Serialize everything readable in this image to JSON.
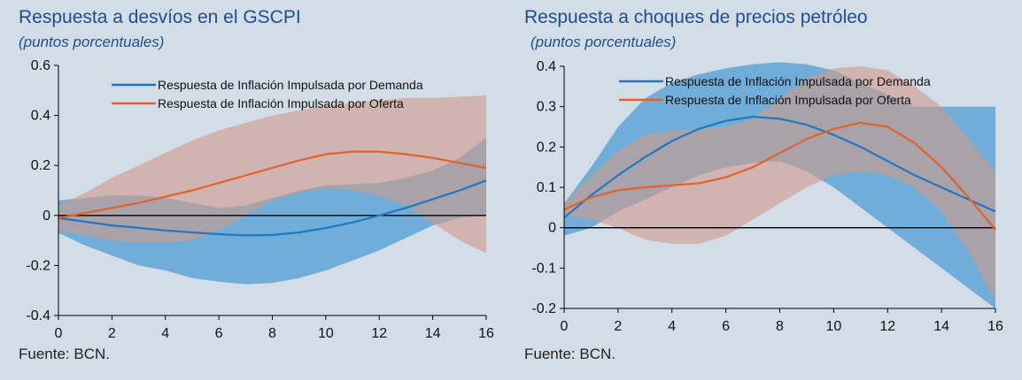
{
  "chart_data": [
    {
      "type": "line",
      "title": "Respuesta a desvíos en el GSCPI",
      "subtitle": "(puntos porcentuales)",
      "source": "Fuente: BCN.",
      "x": [
        0,
        1,
        2,
        3,
        4,
        5,
        6,
        7,
        8,
        9,
        10,
        11,
        12,
        13,
        14,
        15,
        16
      ],
      "xlim": [
        0,
        16
      ],
      "ylim": [
        -0.4,
        0.6
      ],
      "xticks": [
        "0",
        "2",
        "4",
        "6",
        "8",
        "10",
        "12",
        "14",
        "16"
      ],
      "yticks": [
        "-0.4",
        "-0.2",
        "0",
        "0.2",
        "0.4",
        "0.6"
      ],
      "legend_position": "top-center",
      "series": [
        {
          "name": "Respuesta de Inflación Impulsada por Demanda",
          "color": "#1f78c1",
          "band_color": "#5ea6d6",
          "values": [
            -0.01,
            -0.025,
            -0.04,
            -0.05,
            -0.06,
            -0.068,
            -0.075,
            -0.08,
            -0.078,
            -0.068,
            -0.05,
            -0.028,
            0.0,
            0.03,
            0.065,
            0.1,
            0.14
          ],
          "lower": [
            -0.07,
            -0.12,
            -0.16,
            -0.2,
            -0.22,
            -0.25,
            -0.265,
            -0.275,
            -0.27,
            -0.25,
            -0.22,
            -0.18,
            -0.14,
            -0.09,
            -0.04,
            -0.01,
            0.0
          ],
          "upper": [
            0.06,
            0.07,
            0.08,
            0.08,
            0.07,
            0.05,
            0.03,
            0.04,
            0.07,
            0.1,
            0.12,
            0.125,
            0.13,
            0.15,
            0.18,
            0.23,
            0.31
          ]
        },
        {
          "name": "Respuesta de Inflación Impulsada por Oferta",
          "color": "#e0622d",
          "band_color": "#d09a88",
          "values": [
            -0.01,
            0.01,
            0.03,
            0.05,
            0.075,
            0.1,
            0.13,
            0.16,
            0.19,
            0.22,
            0.245,
            0.255,
            0.255,
            0.245,
            0.23,
            0.21,
            0.19
          ],
          "lower": [
            -0.06,
            -0.08,
            -0.1,
            -0.11,
            -0.11,
            -0.1,
            -0.06,
            0.0,
            0.06,
            0.09,
            0.11,
            0.1,
            0.08,
            0.04,
            -0.03,
            -0.1,
            -0.15
          ],
          "upper": [
            0.04,
            0.09,
            0.15,
            0.2,
            0.25,
            0.3,
            0.34,
            0.37,
            0.4,
            0.42,
            0.44,
            0.45,
            0.46,
            0.47,
            0.47,
            0.475,
            0.48
          ]
        }
      ]
    },
    {
      "type": "line",
      "title": "Respuesta a choques de precios petróleo",
      "subtitle": "(puntos porcentuales)",
      "source": "Fuente: BCN.",
      "x": [
        0,
        1,
        2,
        3,
        4,
        5,
        6,
        7,
        8,
        9,
        10,
        11,
        12,
        13,
        14,
        15,
        16
      ],
      "xlim": [
        0,
        16
      ],
      "ylim": [
        -0.2,
        0.4
      ],
      "xticks": [
        "0",
        "2",
        "4",
        "6",
        "8",
        "10",
        "12",
        "14",
        "16"
      ],
      "yticks": [
        "-0.2",
        "-0.1",
        "0",
        "0.1",
        "0.2",
        "0.3",
        "0.4"
      ],
      "legend_position": "top-center",
      "series": [
        {
          "name": "Respuesta de Inflación Impulsada por Demanda",
          "color": "#1f78c1",
          "band_color": "#5ea6d6",
          "values": [
            0.025,
            0.08,
            0.13,
            0.175,
            0.215,
            0.245,
            0.265,
            0.275,
            0.27,
            0.255,
            0.23,
            0.2,
            0.165,
            0.13,
            0.1,
            0.07,
            0.04
          ],
          "lower": [
            -0.02,
            0.0,
            0.04,
            0.07,
            0.1,
            0.13,
            0.15,
            0.16,
            0.165,
            0.14,
            0.1,
            0.05,
            0.0,
            -0.05,
            -0.1,
            -0.15,
            -0.2
          ],
          "upper": [
            0.06,
            0.15,
            0.25,
            0.32,
            0.36,
            0.38,
            0.395,
            0.405,
            0.41,
            0.405,
            0.39,
            0.36,
            0.33,
            0.3,
            0.3,
            0.3,
            0.3
          ]
        },
        {
          "name": "Respuesta de Inflación Impulsada por Oferta",
          "color": "#e0622d",
          "band_color": "#d09a88",
          "values": [
            0.045,
            0.075,
            0.093,
            0.1,
            0.105,
            0.11,
            0.125,
            0.15,
            0.185,
            0.22,
            0.245,
            0.26,
            0.25,
            0.21,
            0.15,
            0.075,
            -0.005
          ],
          "lower": [
            0.03,
            0.02,
            0.0,
            -0.03,
            -0.04,
            -0.04,
            -0.02,
            0.02,
            0.06,
            0.1,
            0.13,
            0.14,
            0.13,
            0.1,
            0.04,
            -0.06,
            -0.18
          ],
          "upper": [
            0.06,
            0.13,
            0.19,
            0.23,
            0.24,
            0.245,
            0.25,
            0.27,
            0.32,
            0.37,
            0.395,
            0.4,
            0.39,
            0.35,
            0.3,
            0.22,
            0.14
          ]
        }
      ]
    }
  ]
}
